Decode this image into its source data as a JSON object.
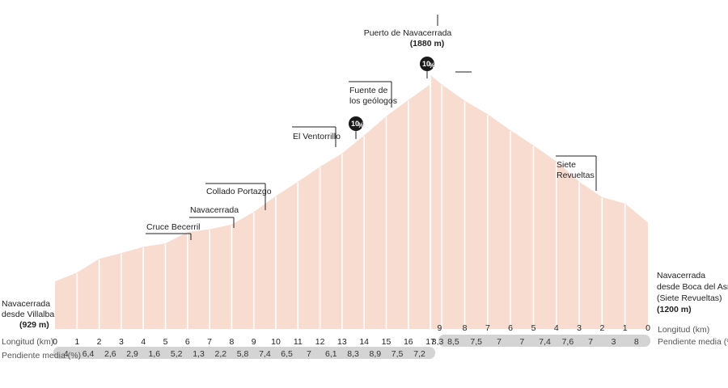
{
  "chart_data": {
    "type": "area",
    "title": "",
    "summit": {
      "name": "Puerto de Navacerrada",
      "elevation": "(1880 m)",
      "km": 17,
      "elev_m": 1880
    },
    "left_route": {
      "start_label": [
        "Navacerrada",
        "desde Villalba"
      ],
      "start_elev": "(929 m)",
      "start_elev_m": 929,
      "axis_km_label": "Longitud (km)",
      "axis_slope_label": "Pendiente media (%)",
      "km_ticks": [
        "0",
        "1",
        "2",
        "3",
        "4",
        "5",
        "6",
        "7",
        "8",
        "9",
        "10",
        "11",
        "12",
        "13",
        "14",
        "15",
        "16",
        "17"
      ],
      "km": [
        0,
        1,
        2,
        3,
        4,
        5,
        6,
        7,
        8,
        9,
        10,
        11,
        12,
        13,
        14,
        15,
        16,
        17
      ],
      "elev_m": [
        929,
        969,
        1033,
        1059,
        1088,
        1104,
        1156,
        1169,
        1191,
        1249,
        1323,
        1388,
        1458,
        1519,
        1602,
        1691,
        1766,
        1838
      ],
      "slopes": [
        "4",
        "6,4",
        "2,6",
        "2,9",
        "1,6",
        "5,2",
        "1,3",
        "2,2",
        "5,8",
        "7,4",
        "6,5",
        "7",
        "6,1",
        "8,3",
        "8,9",
        "7,5",
        "7,2"
      ]
    },
    "right_route": {
      "start_label": [
        "Navacerrada",
        "desde Boca del Asno",
        "(Siete Revueltas)"
      ],
      "start_elev": "(1200 m)",
      "start_elev_m": 1200,
      "axis_km_label": "Longitud (km)",
      "axis_slope_label": "Pendiente media (%)",
      "km_ticks": [
        "9",
        "8",
        "7",
        "6",
        "5",
        "4",
        "3",
        "2",
        "1",
        "0"
      ],
      "km_from_summit": [
        0,
        0.5,
        1.5,
        2.5,
        3.5,
        4.5,
        5.5,
        6.5,
        7.5,
        8.5,
        9.5
      ],
      "elev_m": [
        1880,
        1837,
        1762,
        1700,
        1626,
        1556,
        1483,
        1389,
        1317,
        1288,
        1200
      ],
      "slopes": [
        "8,3",
        "8,5",
        "7,5",
        "7",
        "7",
        "7,4",
        "7,6",
        "7",
        "3",
        "8"
      ]
    },
    "annotations": [
      {
        "text": [
          "Cruce Becerril"
        ],
        "km": 6,
        "route": "left"
      },
      {
        "text": [
          "Navacerrada"
        ],
        "km": 8,
        "route": "left"
      },
      {
        "text": [
          "Collado Portazgo"
        ],
        "km": 9.3,
        "route": "left"
      },
      {
        "text": [
          "El Ventorrillo"
        ],
        "km": 12.5,
        "route": "left"
      },
      {
        "text": [
          "Fuente de",
          "los geólogos"
        ],
        "km": 15,
        "route": "left"
      },
      {
        "text": [
          "Siete",
          "Revueltas"
        ],
        "km": 5.3,
        "route": "right"
      }
    ],
    "badges": [
      {
        "text": "10",
        "suffix": "%",
        "km": 13.4
      },
      {
        "text": "10",
        "suffix": "%",
        "km": 16.5
      }
    ]
  },
  "colors": {
    "fill": "#f9dcd0",
    "divider": "#ffffff",
    "slope_bar": "#d4d4d4",
    "text": "#222222",
    "badge": "#1a1a1a"
  }
}
